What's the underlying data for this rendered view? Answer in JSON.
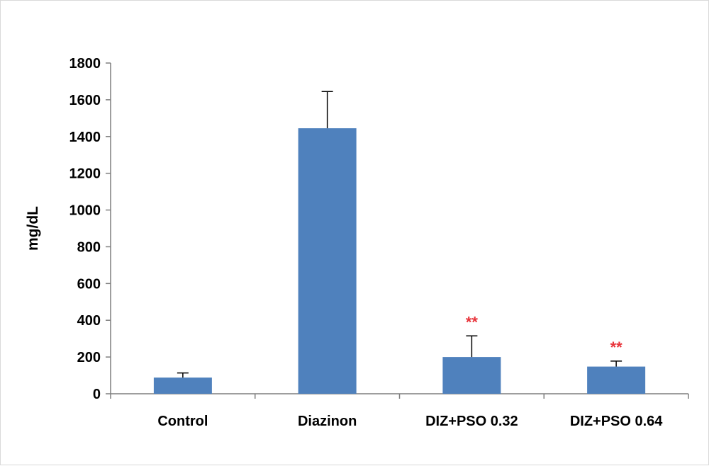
{
  "chart_data": {
    "type": "bar",
    "title": "",
    "xlabel": "",
    "ylabel": "mg/dL",
    "ylim": [
      0,
      1800
    ],
    "yticks": [
      0,
      200,
      400,
      600,
      800,
      1000,
      1200,
      1400,
      1600,
      1800
    ],
    "categories": [
      "Control",
      "Diazinon",
      "DIZ+PSO 0.32",
      "DIZ+PSO 0.64"
    ],
    "values": [
      88,
      1445,
      200,
      148
    ],
    "error_upper": [
      25,
      200,
      115,
      30
    ],
    "annotations": [
      "",
      "",
      "**",
      "**"
    ],
    "bar_color": "#4f81bd",
    "annotation_color": "#e8343b",
    "grid": false,
    "legend": "none"
  }
}
